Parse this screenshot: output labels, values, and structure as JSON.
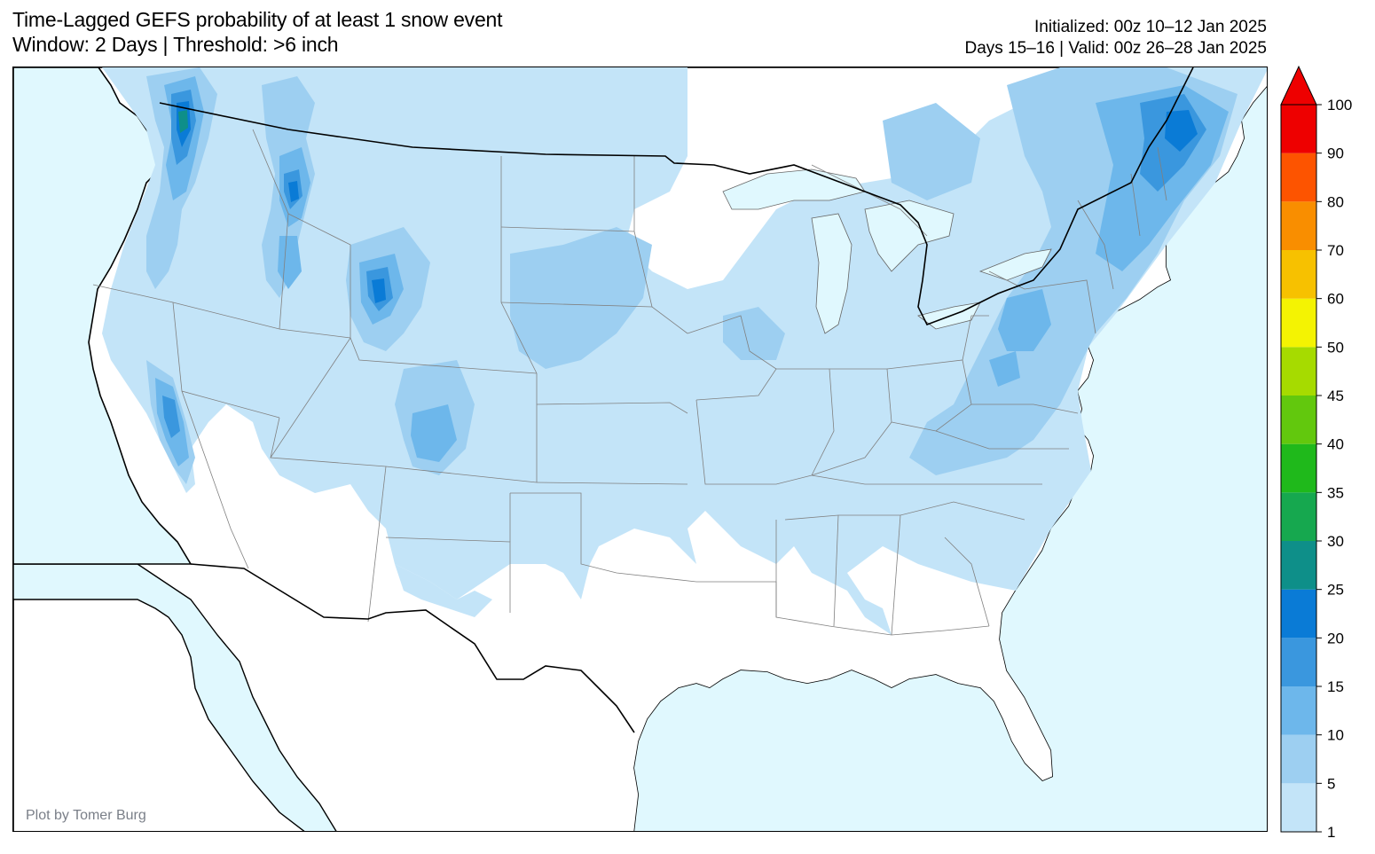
{
  "title": {
    "line1": "Time-Lagged GEFS probability of at least 1 snow event",
    "line2": "Window: 2 Days | Threshold: >6 inch"
  },
  "info": {
    "initialized": "Initialized: 00z 10–12 Jan 2025",
    "valid": "Days 15–16 | Valid: 00z 26–28 Jan 2025"
  },
  "credit": "Plot by Tomer Burg",
  "colors": {
    "ocean": "#e0f8fe",
    "land": "#ffffff",
    "coast": "#000000",
    "state_border": "#808080"
  },
  "colorbar": {
    "extend": "max",
    "ticks": [
      "1",
      "5",
      "10",
      "15",
      "20",
      "25",
      "30",
      "35",
      "40",
      "45",
      "50",
      "60",
      "70",
      "80",
      "90",
      "100"
    ],
    "colors": [
      "#c3e4f8",
      "#9dcff1",
      "#6db7eb",
      "#3a97de",
      "#0a7bd6",
      "#0e8f89",
      "#16a84f",
      "#1fb91b",
      "#62c80d",
      "#a6db00",
      "#f4f302",
      "#f7c100",
      "#f98e00",
      "#fd5400",
      "#ee0000"
    ]
  },
  "map": {
    "region": "CONUS",
    "description_levels": "probability shading 1–100%"
  }
}
